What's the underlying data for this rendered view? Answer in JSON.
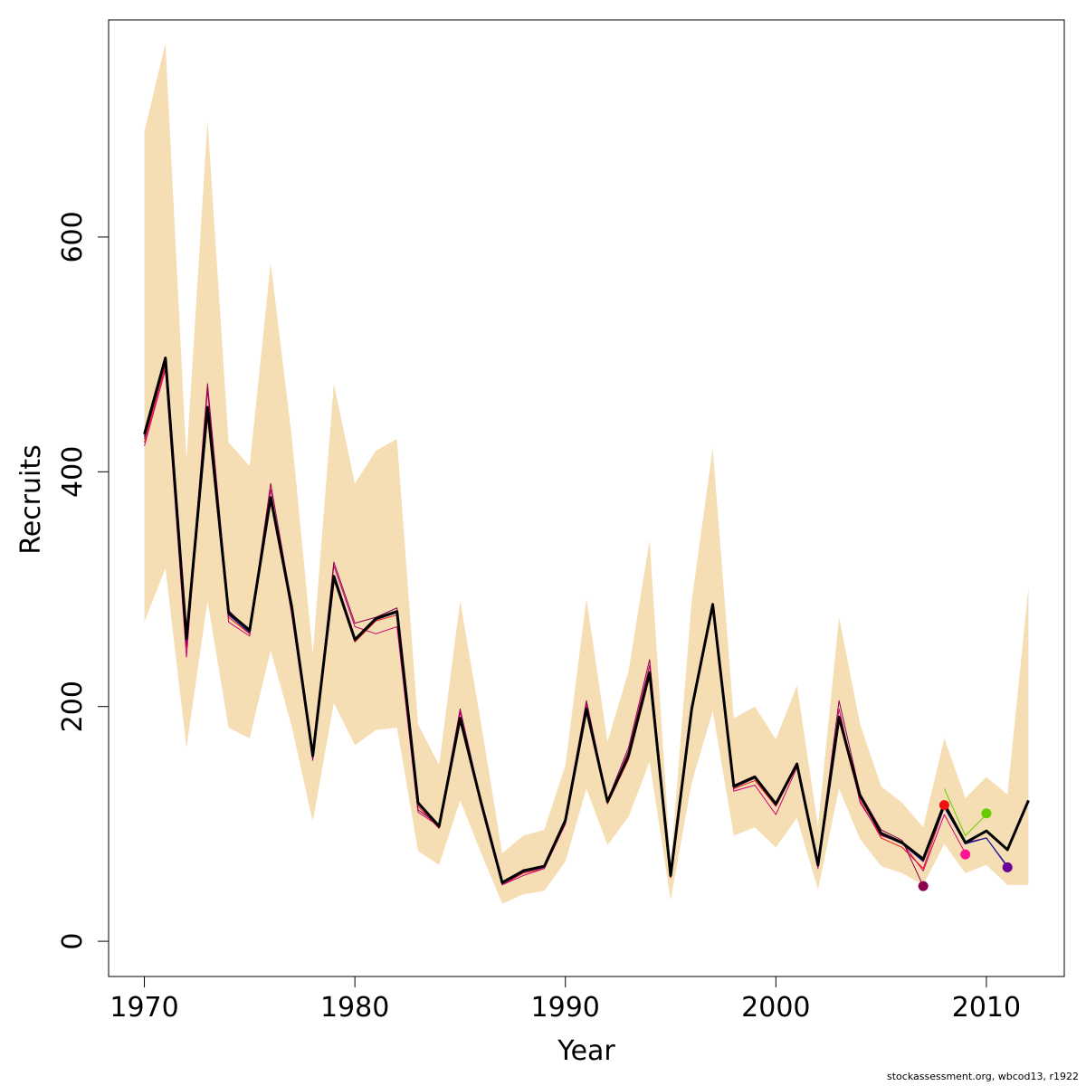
{
  "chart_data": {
    "type": "line",
    "xlabel": "Year",
    "ylabel": "Recruits",
    "xlim": [
      1968.3,
      2013.7
    ],
    "ylim": [
      -30,
      785
    ],
    "x_ticks": [
      1970,
      1980,
      1990,
      2000,
      2010
    ],
    "y_ticks": [
      0,
      200,
      400,
      600
    ],
    "grid": false,
    "band": {
      "color": "#f5deb3",
      "x": [
        1970,
        1971,
        1972,
        1973,
        1974,
        1975,
        1976,
        1977,
        1978,
        1979,
        1980,
        1981,
        1982,
        1983,
        1984,
        1985,
        1986,
        1987,
        1988,
        1989,
        1990,
        1991,
        1992,
        1993,
        1994,
        1995,
        1996,
        1997,
        1998,
        1999,
        2000,
        2001,
        2002,
        2003,
        2004,
        2005,
        2006,
        2007,
        2008,
        2009,
        2010,
        2011,
        2012
      ],
      "upper": [
        690,
        765,
        410,
        700,
        425,
        405,
        578,
        430,
        245,
        475,
        390,
        418,
        428,
        185,
        150,
        290,
        185,
        75,
        90,
        95,
        150,
        292,
        170,
        230,
        342,
        65,
        290,
        420,
        190,
        200,
        172,
        218,
        98,
        276,
        185,
        132,
        118,
        97,
        173,
        122,
        140,
        125,
        302
      ],
      "lower": [
        272,
        318,
        165,
        290,
        182,
        173,
        248,
        183,
        102,
        203,
        167,
        180,
        182,
        77,
        65,
        120,
        75,
        32,
        40,
        43,
        68,
        130,
        82,
        106,
        153,
        35,
        135,
        196,
        90,
        97,
        80,
        105,
        44,
        130,
        87,
        64,
        58,
        48,
        83,
        58,
        65,
        48,
        48
      ]
    },
    "series": [
      {
        "color": "#000000",
        "width": 3,
        "x": [
          1970,
          1971,
          1972,
          1973,
          1974,
          1975,
          1976,
          1977,
          1978,
          1979,
          1980,
          1981,
          1982,
          1983,
          1984,
          1985,
          1986,
          1987,
          1988,
          1989,
          1990,
          1991,
          1992,
          1993,
          1994,
          1995,
          1996,
          1997,
          1998,
          1999,
          2000,
          2001,
          2002,
          2003,
          2004,
          2005,
          2006,
          2007,
          2008,
          2009,
          2010,
          2011,
          2012
        ],
        "values": [
          432,
          497,
          258,
          455,
          280,
          265,
          378,
          285,
          158,
          311,
          257,
          275,
          281,
          118,
          98,
          190,
          118,
          50,
          60,
          64,
          103,
          198,
          119,
          158,
          229,
          56,
          198,
          287,
          132,
          140,
          117,
          151,
          65,
          191,
          124,
          92,
          84,
          70,
          117,
          84,
          94,
          78,
          120
        ]
      },
      {
        "color": "#1a1a99",
        "width": 1.2,
        "x": [
          1970,
          1971,
          1972,
          1973,
          1974,
          1975,
          1976,
          1977,
          1978,
          1979,
          1980,
          1981,
          1982,
          1983,
          1984,
          1985,
          1986,
          1987,
          1988,
          1989,
          1990,
          1991,
          1992,
          1993,
          1994,
          1995,
          1996,
          1997,
          1998,
          1999,
          2000,
          2001,
          2002,
          2003,
          2004,
          2005,
          2006,
          2007,
          2008,
          2009,
          2010,
          2011
        ],
        "values": [
          430,
          495,
          256,
          452,
          278,
          263,
          376,
          283,
          157,
          310,
          256,
          274,
          280,
          117,
          97,
          189,
          117,
          49,
          59,
          63,
          102,
          197,
          118,
          157,
          228,
          55,
          197,
          286,
          131,
          139,
          116,
          150,
          64,
          190,
          123,
          91,
          83,
          68,
          114,
          83,
          88,
          64
        ]
      },
      {
        "color": "#ee1111",
        "width": 1,
        "x": [
          1970,
          1971,
          1972,
          1973,
          1974,
          1975,
          1976,
          1977,
          1978,
          1979,
          1980,
          1981,
          1982,
          1983,
          1984,
          1985,
          1986,
          1987,
          1988,
          1989,
          1990,
          1991,
          1992,
          1993,
          1994,
          1995,
          1996,
          1997,
          1998,
          1999,
          2000,
          2001,
          2002,
          2003,
          2004,
          2005,
          2006,
          2007,
          2008
        ],
        "values": [
          425,
          490,
          250,
          448,
          276,
          262,
          375,
          280,
          155,
          308,
          255,
          273,
          278,
          115,
          96,
          187,
          115,
          48,
          58,
          62,
          100,
          195,
          117,
          155,
          225,
          54,
          196,
          285,
          130,
          137,
          115,
          149,
          63,
          188,
          120,
          88,
          80,
          62,
          115
        ]
      },
      {
        "color": "#cc0077",
        "width": 1,
        "x": [
          1970,
          1971,
          1972,
          1973,
          1974,
          1975,
          1976,
          1977,
          1978,
          1979,
          1980,
          1981,
          1982,
          1983,
          1984,
          1985,
          1986,
          1987,
          1988,
          1989,
          1990,
          1991,
          1992,
          1993,
          1994,
          1995,
          1996,
          1997,
          1998,
          1999,
          2000,
          2001,
          2002,
          2003,
          2004,
          2005,
          2006,
          2007,
          2008,
          2009
        ],
        "values": [
          422,
          487,
          242,
          470,
          272,
          260,
          385,
          278,
          154,
          320,
          268,
          262,
          268,
          110,
          98,
          195,
          115,
          48,
          56,
          62,
          100,
          202,
          118,
          162,
          235,
          55,
          200,
          288,
          128,
          133,
          108,
          148,
          62,
          198,
          118,
          90,
          84,
          60,
          108,
          75
        ]
      },
      {
        "color": "#8b0050",
        "width": 1,
        "x": [
          1970,
          1971,
          1972,
          1973,
          1974,
          1975,
          1976,
          1977,
          1978,
          1979,
          1980,
          1981,
          1982,
          1983,
          1984,
          1985,
          1986,
          1987,
          1988,
          1989,
          1990,
          1991,
          1992,
          1993,
          1994,
          1995,
          1996,
          1997,
          1998,
          1999,
          2000,
          2001,
          2002,
          2003,
          2004,
          2005,
          2006,
          2007
        ],
        "values": [
          428,
          493,
          252,
          475,
          282,
          264,
          390,
          287,
          156,
          323,
          271,
          276,
          284,
          112,
          99,
          198,
          119,
          49,
          61,
          64,
          105,
          205,
          120,
          165,
          240,
          56,
          200,
          283,
          133,
          141,
          117,
          152,
          66,
          205,
          126,
          95,
          86,
          47
        ]
      },
      {
        "color": "#66cc00",
        "width": 1,
        "x": [
          2008,
          2009,
          2010
        ],
        "values": [
          130,
          90,
          108
        ]
      },
      {
        "color": "#660099",
        "width": 1,
        "x": [
          2009,
          2010,
          2011
        ],
        "values": [
          84,
          88,
          63
        ]
      }
    ],
    "points": [
      {
        "x": 2007,
        "y": 47,
        "color": "#8b0050"
      },
      {
        "x": 2008,
        "y": 116,
        "color": "#ee1111"
      },
      {
        "x": 2009,
        "y": 74,
        "color": "#ff1493"
      },
      {
        "x": 2010,
        "y": 109,
        "color": "#66cc00"
      },
      {
        "x": 2011,
        "y": 63,
        "color": "#660099"
      }
    ]
  },
  "credit": "stockassessment.org, wbcod13, r1922"
}
